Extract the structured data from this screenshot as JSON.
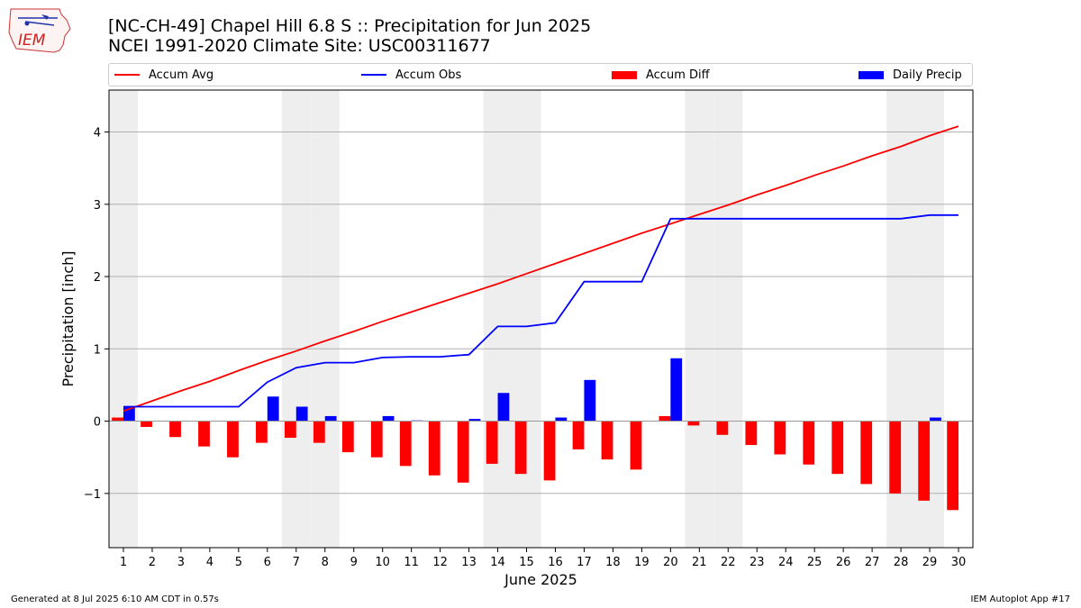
{
  "logo": {
    "text": "IEM"
  },
  "title_line1": "[NC-CH-49] Chapel Hill 6.8 S :: Precipitation for Jun 2025",
  "title_line2": "NCEI 1991-2020 Climate Site: USC00311677",
  "legend": [
    {
      "label": "Accum Avg",
      "kind": "line",
      "color": "#ff0000"
    },
    {
      "label": "Accum Obs",
      "kind": "line",
      "color": "#0000ff"
    },
    {
      "label": "Accum Diff",
      "kind": "bar",
      "color": "#ff0000"
    },
    {
      "label": "Daily Precip",
      "kind": "bar",
      "color": "#0000ff"
    }
  ],
  "footer": {
    "left": "Generated at 8 Jul 2025 6:10 AM CDT in 0.57s",
    "right": "IEM Autoplot App #17"
  },
  "chart_data": {
    "type": "bar",
    "xlabel": "June 2025",
    "ylabel": "Precipitation [inch]",
    "ylim": [
      -1.75,
      4.58
    ],
    "yticks": [
      -1,
      0,
      1,
      2,
      3,
      4
    ],
    "categories": [
      "1",
      "2",
      "3",
      "4",
      "5",
      "6",
      "7",
      "8",
      "9",
      "10",
      "11",
      "12",
      "13",
      "14",
      "15",
      "16",
      "17",
      "18",
      "19",
      "20",
      "21",
      "22",
      "23",
      "24",
      "25",
      "26",
      "27",
      "28",
      "29",
      "30"
    ],
    "weekend_days": [
      1,
      7,
      8,
      14,
      15,
      21,
      22,
      28,
      29
    ],
    "grid": "horizontal",
    "legend_position": "top",
    "series": [
      {
        "name": "Accum Avg",
        "type": "line",
        "color": "#ff0000",
        "values": [
          0.14,
          0.28,
          0.42,
          0.55,
          0.7,
          0.84,
          0.97,
          1.11,
          1.24,
          1.38,
          1.51,
          1.64,
          1.77,
          1.9,
          2.04,
          2.18,
          2.32,
          2.46,
          2.6,
          2.73,
          2.86,
          2.99,
          3.13,
          3.26,
          3.4,
          3.53,
          3.67,
          3.8,
          3.95,
          4.08
        ]
      },
      {
        "name": "Accum Obs",
        "type": "line",
        "color": "#0000ff",
        "values": [
          0.2,
          0.2,
          0.2,
          0.2,
          0.2,
          0.54,
          0.74,
          0.81,
          0.81,
          0.88,
          0.89,
          0.89,
          0.92,
          1.31,
          1.31,
          1.36,
          1.93,
          1.93,
          1.93,
          2.8,
          2.8,
          2.8,
          2.8,
          2.8,
          2.8,
          2.8,
          2.8,
          2.8,
          2.85,
          2.85
        ]
      },
      {
        "name": "Accum Diff",
        "type": "bar",
        "color": "#ff0000",
        "values": [
          0.05,
          -0.08,
          -0.22,
          -0.35,
          -0.5,
          -0.3,
          -0.23,
          -0.3,
          -0.43,
          -0.5,
          -0.62,
          -0.75,
          -0.85,
          -0.59,
          -0.73,
          -0.82,
          -0.39,
          -0.53,
          -0.67,
          0.07,
          -0.06,
          -0.19,
          -0.33,
          -0.46,
          -0.6,
          -0.73,
          -0.87,
          -1.0,
          -1.1,
          -1.23
        ]
      },
      {
        "name": "Daily Precip",
        "type": "bar",
        "color": "#0000ff",
        "values": [
          0.2,
          0.0,
          0.0,
          0.0,
          0.0,
          0.34,
          0.2,
          0.07,
          0.0,
          0.07,
          0.01,
          0.0,
          0.03,
          0.39,
          0.0,
          0.05,
          0.57,
          0.0,
          0.0,
          0.87,
          0.0,
          0.0,
          0.0,
          0.0,
          0.0,
          0.0,
          0.0,
          0.0,
          0.05,
          0.0
        ]
      }
    ]
  }
}
